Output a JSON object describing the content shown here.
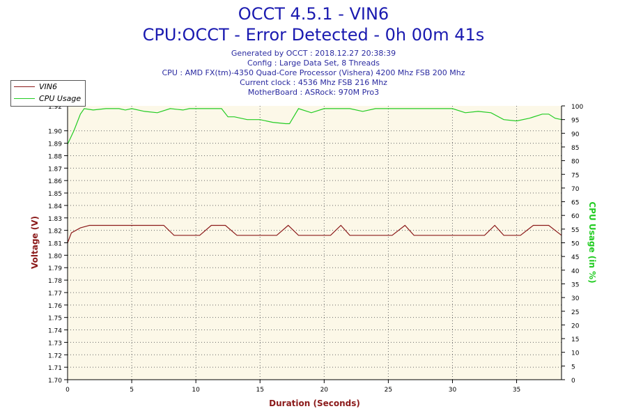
{
  "header": {
    "title": "OCCT 4.5.1 - VIN6",
    "subtitle": "CPU:OCCT - Error Detected - 0h 00m 41s",
    "info": [
      "Generated by OCCT : 2018.12.27 20:38:39",
      "Config : Large Data Set, 8 Threads",
      "CPU : AMD FX(tm)-4350 Quad-Core Processor (Vishera) 4200 Mhz FSB 200 Mhz",
      "Current clock : 4536 Mhz FSB 216 Mhz",
      "MotherBoard : ASRock: 970M Pro3"
    ]
  },
  "legend": [
    {
      "label": "VIN6",
      "color": "#8b1a1a"
    },
    {
      "label": "CPU Usage",
      "color": "#22cc22"
    }
  ],
  "chart_data": {
    "type": "line",
    "xlabel": "Duration (Seconds)",
    "ylabel": "Voltage (V)",
    "y2label": "CPU Usage (in %)",
    "xlim": [
      0,
      38.5
    ],
    "ylim": [
      1.7,
      1.92
    ],
    "y2lim": [
      0,
      100
    ],
    "x_ticks": [
      "0",
      "5",
      "10",
      "15",
      "20",
      "25",
      "30",
      "35"
    ],
    "y_ticks": [
      "1.70",
      "1.71",
      "1.72",
      "1.73",
      "1.74",
      "1.75",
      "1.76",
      "1.77",
      "1.78",
      "1.79",
      "1.80",
      "1.81",
      "1.82",
      "1.83",
      "1.84",
      "1.85",
      "1.86",
      "1.87",
      "1.88",
      "1.89",
      "1.90",
      "1.92"
    ],
    "y2_ticks": [
      "0",
      "5",
      "10",
      "15",
      "20",
      "25",
      "30",
      "35",
      "40",
      "45",
      "50",
      "55",
      "60",
      "65",
      "70",
      "75",
      "80",
      "85",
      "90",
      "95",
      "100"
    ],
    "grid": true,
    "legend_position": "top-left",
    "series": [
      {
        "name": "VIN6",
        "axis": "left",
        "color": "#8b1a1a",
        "x": [
          0,
          0.3,
          1,
          1.7,
          2.5,
          4,
          6,
          7,
          7.5,
          8.3,
          9,
          10,
          10.3,
          11.2,
          12,
          12.3,
          13.2,
          14,
          16,
          16.3,
          17.2,
          18,
          18.5,
          19,
          20,
          20.5,
          21.3,
          22,
          22.5,
          23,
          25,
          25.3,
          26.3,
          27,
          27.5,
          28,
          30,
          32,
          32.5,
          33.3,
          34,
          34.5,
          35,
          35.3,
          36.3,
          37,
          37.5,
          38.5
        ],
        "y": [
          1.81,
          1.818,
          1.822,
          1.824,
          1.824,
          1.824,
          1.824,
          1.824,
          1.824,
          1.816,
          1.816,
          1.816,
          1.816,
          1.824,
          1.824,
          1.824,
          1.816,
          1.816,
          1.816,
          1.816,
          1.824,
          1.816,
          1.816,
          1.816,
          1.816,
          1.816,
          1.824,
          1.816,
          1.816,
          1.816,
          1.816,
          1.816,
          1.824,
          1.816,
          1.816,
          1.816,
          1.816,
          1.816,
          1.816,
          1.824,
          1.816,
          1.816,
          1.816,
          1.816,
          1.824,
          1.824,
          1.824,
          1.816
        ]
      },
      {
        "name": "CPU Usage",
        "axis": "right",
        "color": "#22cc22",
        "x": [
          0,
          0.5,
          1,
          1.3,
          2,
          3,
          4,
          4.5,
          5,
          6,
          7,
          8,
          9,
          9.5,
          10,
          11,
          12,
          12.5,
          13,
          14,
          15,
          16,
          17,
          17.3,
          18,
          19,
          20,
          21,
          22,
          23,
          24,
          25,
          26,
          27,
          28,
          29,
          30,
          31,
          32,
          33,
          34,
          35,
          36,
          37,
          37.5,
          38,
          38.5
        ],
        "y": [
          86,
          91,
          97,
          99,
          98.5,
          99,
          99,
          98.5,
          99,
          98,
          97.5,
          99,
          98.5,
          99,
          99,
          99,
          99,
          96,
          96,
          95,
          95,
          94,
          93.5,
          93.5,
          99,
          97.5,
          99,
          99,
          99,
          98,
          99,
          99,
          99,
          99,
          99,
          99,
          99,
          97.5,
          98,
          97.5,
          95,
          94.5,
          95.5,
          97,
          97,
          95.5,
          95
        ]
      }
    ]
  }
}
